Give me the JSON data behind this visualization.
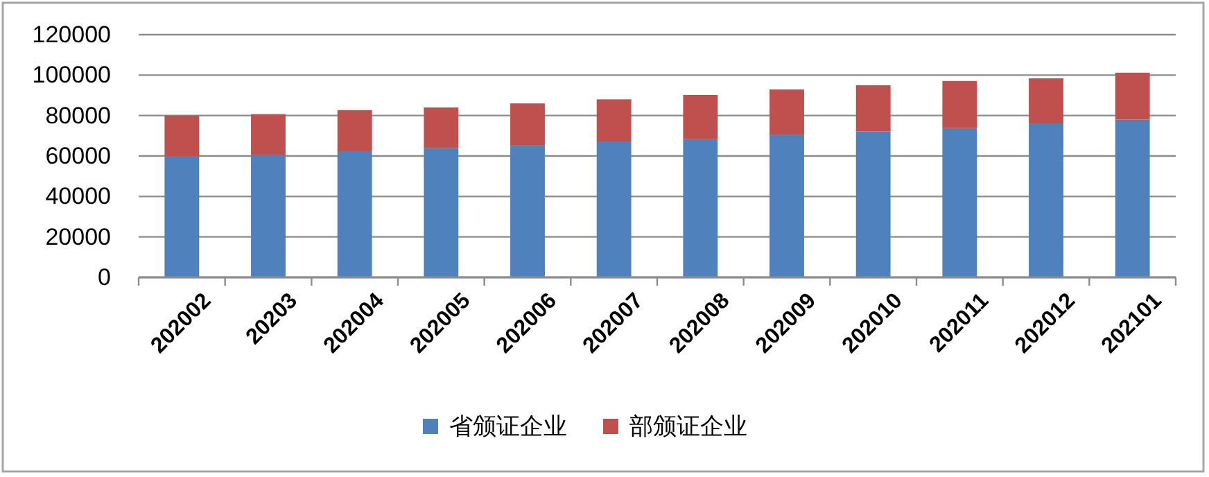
{
  "chart_data": {
    "type": "bar",
    "stacked": true,
    "categories": [
      "202002",
      "20203",
      "202004",
      "202005",
      "202006",
      "202007",
      "202008",
      "202009",
      "202010",
      "202011",
      "202012",
      "202101"
    ],
    "series": [
      {
        "name": "省颁证企业",
        "color": "#4f81bd",
        "values": [
          60000,
          60700,
          62400,
          64000,
          65200,
          67200,
          68300,
          70600,
          72200,
          73800,
          76100,
          78000
        ]
      },
      {
        "name": "部颁证企业",
        "color": "#c0504d",
        "values": [
          20000,
          20000,
          20300,
          20000,
          20800,
          20800,
          21900,
          22300,
          22800,
          23300,
          22300,
          23200
        ]
      }
    ],
    "ylim": [
      0,
      120000
    ],
    "yticks": [
      0,
      20000,
      40000,
      60000,
      80000,
      100000,
      120000
    ],
    "grid": "y",
    "legend": "bottom"
  }
}
